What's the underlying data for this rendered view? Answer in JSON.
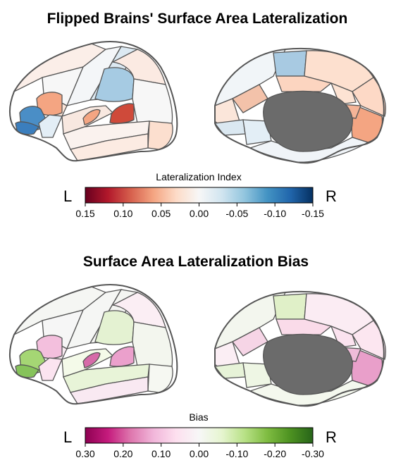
{
  "panels": [
    {
      "title": "Flipped Brains' Surface Area Lateralization",
      "colorbar": {
        "label": "Lateralization Index",
        "left_letter": "L",
        "right_letter": "R",
        "ticks": [
          "0.15",
          "0.10",
          "0.05",
          "0.00",
          "-0.05",
          "-0.10",
          "-0.15"
        ],
        "colors": [
          "#67001f",
          "#b2182b",
          "#d6604d",
          "#f4a582",
          "#fddbc7",
          "#f7f7f7",
          "#d1e5f0",
          "#92c5de",
          "#4393c3",
          "#2166ac",
          "#053061"
        ]
      },
      "lateral_regions": {
        "frontal_pole": "#4a8ec6",
        "pars_orbitalis": "#3b7ebd",
        "pars_triangularis": "#f4a582",
        "pars_opercularis": "#fbe4d8",
        "precentral": "#f4f6f8",
        "postcentral": "#dce9f2",
        "supramarginal": "#a6cbe3",
        "superior_parietal": "#fbeae2",
        "inferior_parietal": "#f7f7f7",
        "superior_temporal": "#f8e8e0",
        "transverse_temporal": "#f4a582",
        "bank_sts": "#cf4a3a",
        "middle_temporal": "#faf2ee",
        "inferior_temporal": "#fcebe2",
        "lateral_occipital": "#fcdfcf",
        "superior_frontal": "#fbeee8",
        "caudal_middle_frontal": "#f7f7f7",
        "insula": "#e3eef6"
      },
      "medial_regions": {
        "paracentral": "#a8cae2",
        "superior_frontal_medial": "#f1f5f8",
        "precuneus": "#fde0cf",
        "posterior_cingulate": "#fcd5c0",
        "isthmus": "#fde3d3",
        "cuneus": "#fdd9c6",
        "lingual": "#f4a582",
        "pericalcarine": "#f5b497",
        "medial_orbitofrontal": "#fbe6da",
        "rostral_anterior_cingulate": "#f3c2aa",
        "parahippocampal": "#e3eef6",
        "fusiform": "#f0f4f8",
        "entorhinal": "#dbe8f1",
        "medial_wall": "#6b6b6b"
      }
    },
    {
      "title": "Surface Area Lateralization Bias",
      "colorbar": {
        "label": "Bias",
        "left_letter": "L",
        "right_letter": "R",
        "ticks": [
          "0.30",
          "0.20",
          "0.10",
          "0.00",
          "-0.10",
          "-0.20",
          "-0.30"
        ],
        "colors": [
          "#8e0152",
          "#c51b7d",
          "#de77ae",
          "#f1b6da",
          "#fde0ef",
          "#f7f7f7",
          "#e6f5d0",
          "#b8e186",
          "#7fbc41",
          "#4d9221",
          "#276419"
        ]
      },
      "lateral_regions": {
        "frontal_pole": "#a5d674",
        "pars_orbitalis": "#86c35a",
        "pars_triangularis": "#f3bfdd",
        "pars_opercularis": "#f9ecf2",
        "precentral": "#f5f6f4",
        "postcentral": "#f4f5f2",
        "supramarginal": "#e4f2d2",
        "superior_parietal": "#fbeef4",
        "inferior_parietal": "#f3f6ee",
        "superior_temporal": "#f4fae9",
        "transverse_temporal": "#d66aa8",
        "bank_sts": "#eba0cc",
        "middle_temporal": "#e8f4d8",
        "inferior_temporal": "#f9e9f2",
        "lateral_occipital": "#f6f8f2",
        "superior_frontal": "#f5f6f3",
        "caudal_middle_frontal": "#f6f6f6",
        "insula": "#fbe4f0"
      },
      "medial_regions": {
        "paracentral": "#e0f0c8",
        "superior_frontal_medial": "#f3f6ee",
        "precuneus": "#fbecf3",
        "posterior_cingulate": "#fadbe9",
        "isthmus": "#fbe3ef",
        "cuneus": "#fce6f0",
        "lingual": "#e99fca",
        "pericalcarine": "#f0bcd9",
        "medial_orbitofrontal": "#fbeef4",
        "rostral_anterior_cingulate": "#f6d5e6",
        "parahippocampal": "#eef6e4",
        "fusiform": "#f4f8ee",
        "entorhinal": "#e7f3d8",
        "medial_wall": "#6b6b6b"
      }
    }
  ]
}
